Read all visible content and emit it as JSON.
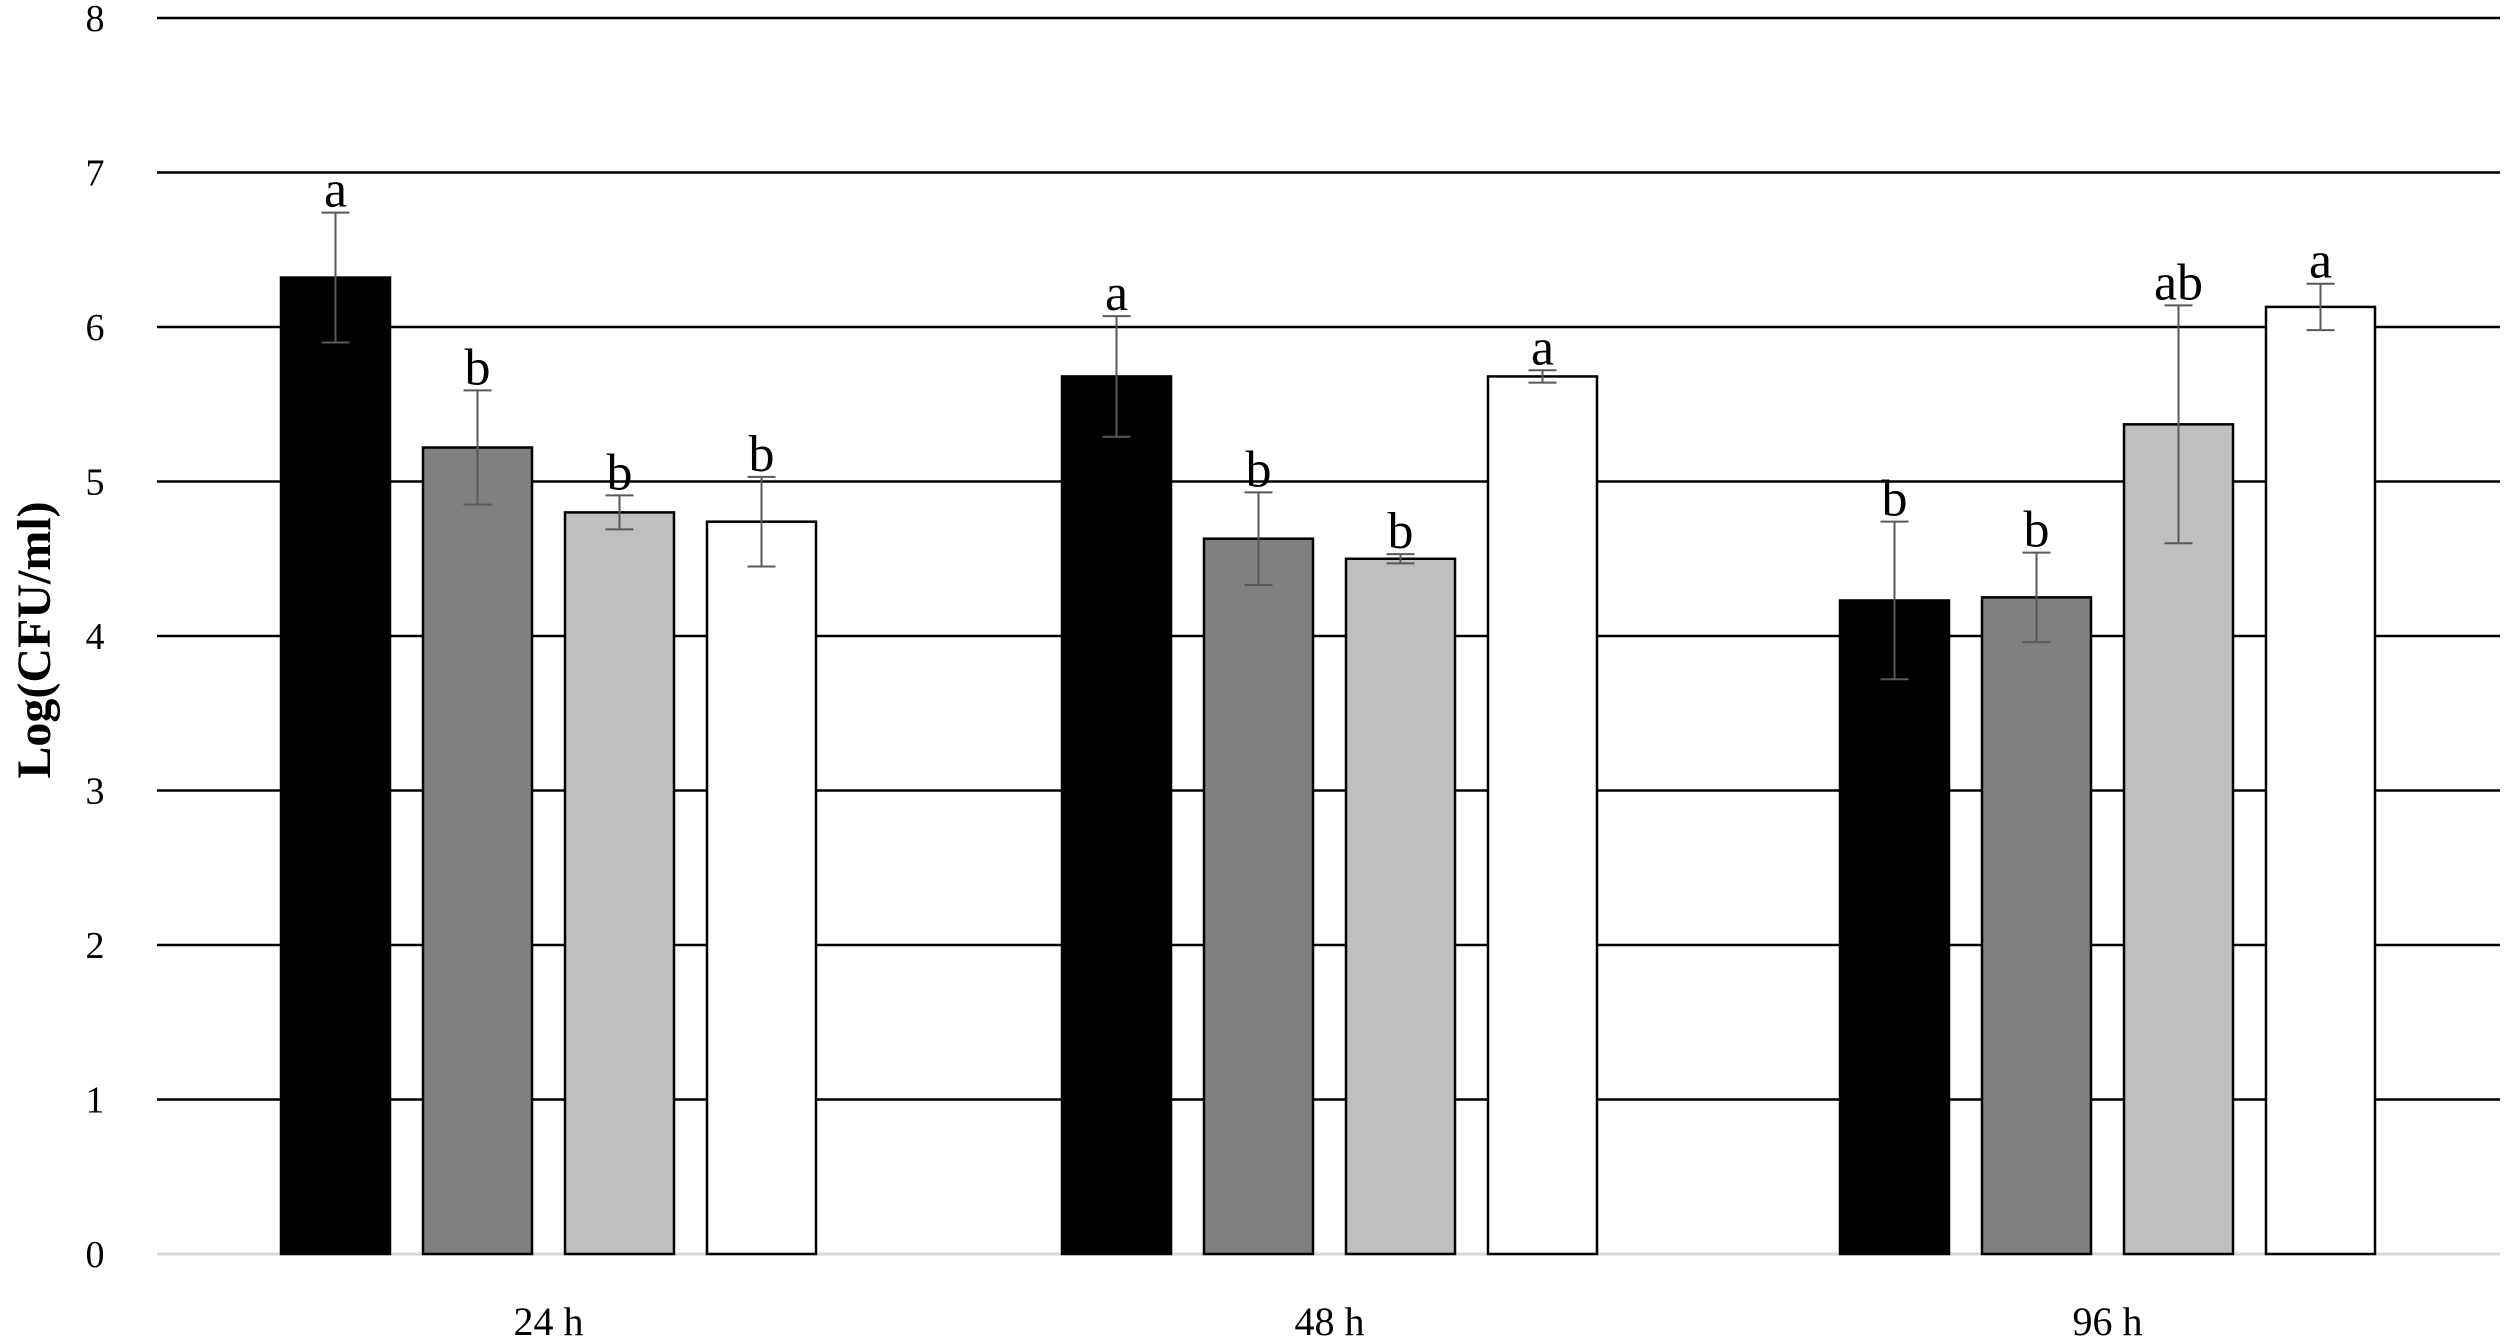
{
  "chart_data": {
    "type": "bar",
    "title": "",
    "xlabel": "",
    "ylabel": "Log(CFU/ml)",
    "ylim": [
      0,
      8
    ],
    "yticks": [
      "0",
      "1",
      "2",
      "3",
      "4",
      "5",
      "6",
      "7",
      "8"
    ],
    "grid": true,
    "legend": "none",
    "categories": [
      "24 h",
      "48 h",
      "96 h"
    ],
    "series": [
      {
        "color": "#000000",
        "values": [
          6.32,
          5.68,
          4.23
        ],
        "errors": [
          0.42,
          0.39,
          0.51
        ],
        "labels": [
          "a",
          "a",
          "b"
        ]
      },
      {
        "color": "#808080",
        "values": [
          5.22,
          4.63,
          4.25
        ],
        "errors": [
          0.37,
          0.3,
          0.29
        ],
        "labels": [
          "b",
          "b",
          "b"
        ]
      },
      {
        "color": "#bfbfbf",
        "values": [
          4.8,
          4.5,
          5.37
        ],
        "errors": [
          0.11,
          0.03,
          0.77
        ],
        "labels": [
          "b",
          "b",
          "ab"
        ]
      },
      {
        "color": "#ffffff",
        "values": [
          4.74,
          5.68,
          6.13
        ],
        "errors": [
          0.29,
          0.04,
          0.15
        ],
        "labels": [
          "b",
          "a",
          "a"
        ]
      }
    ]
  }
}
